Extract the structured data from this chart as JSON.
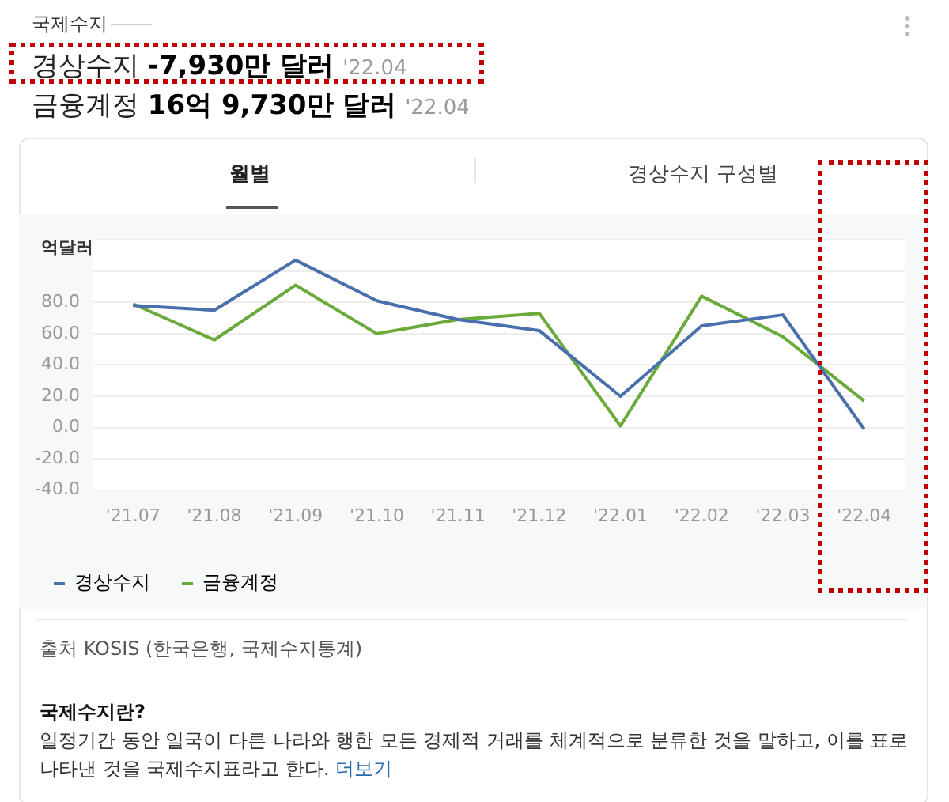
{
  "chart_data": {
    "type": "line",
    "title": "국제수지",
    "ylabel": "억달러",
    "categories": [
      "'21.07",
      "'21.08",
      "'21.09",
      "'21.10",
      "'21.11",
      "'21.12",
      "'22.01",
      "'22.02",
      "'22.03",
      "'22.04"
    ],
    "series": [
      {
        "name": "경상수지",
        "color": "#4a6fad",
        "values": [
          78,
          75,
          107,
          81,
          69,
          62,
          20,
          65,
          72,
          -1
        ]
      },
      {
        "name": "금융계정",
        "color": "#6aaa3a",
        "values": [
          79,
          56,
          91,
          60,
          69,
          73,
          1,
          84,
          58,
          17
        ]
      }
    ],
    "ylim": [
      -40,
      120
    ],
    "yticks": [
      {
        "value": -40,
        "label": "-40.0"
      },
      {
        "value": -20,
        "label": "-20.0"
      },
      {
        "value": 0,
        "label": "0.0"
      },
      {
        "value": 20,
        "label": "20.0"
      },
      {
        "value": 40,
        "label": "40.0"
      },
      {
        "value": 60,
        "label": "60.0"
      },
      {
        "value": 80,
        "label": "80.0"
      },
      {
        "value": 100,
        "label": null
      },
      {
        "value": 120,
        "label": null
      }
    ],
    "grid": "y",
    "legend": "bottom left",
    "marker": "none",
    "line_style": "solid",
    "annotations": [
      "경상수지",
      "-7,930만 달러",
      "'22.04",
      "금융계정",
      "16억 9,730만 달러",
      "'22.04",
      "월별",
      "경상수지 구성별",
      "출처 KOSIS (한국은행, 국제수지통계)",
      "국제수지란?",
      "일정기간 동안 일국이 다른 나라와 행한 모든 경제적 거래를 체계적으로 분류한 것을 말하고, 이를 표로 나타낸 것을 국제수지표라고 한다.",
      "더보기"
    ]
  }
}
